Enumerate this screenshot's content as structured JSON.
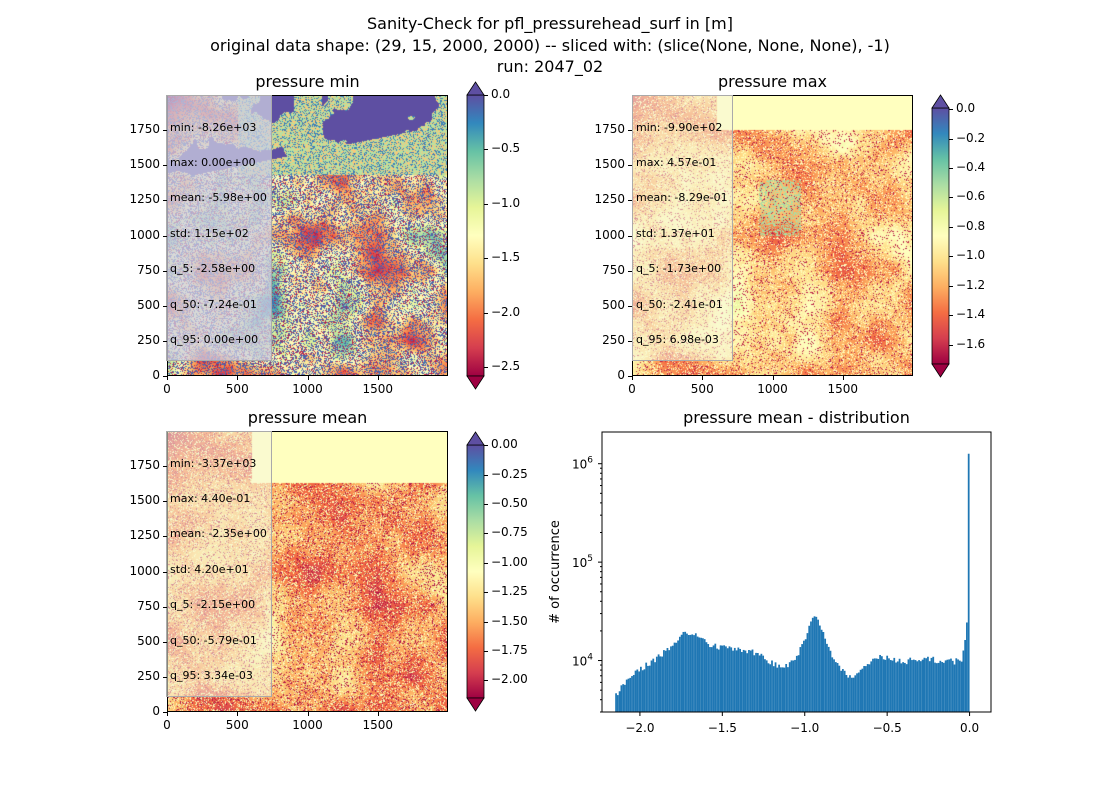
{
  "figure": {
    "title_line1": "Sanity-Check for pfl_pressurehead_surf in [m]",
    "title_line2": "original data shape: (29, 15, 2000, 2000) -- sliced with: (slice(None, None, None), -1)",
    "title_line3": "run: 2047_02"
  },
  "colormap": "Spectral",
  "panels": [
    {
      "title": "pressure min",
      "stats": [
        "min: -8.26e+03",
        "max: 0.00e+00",
        "mean: -5.98e+00",
        "std: 1.15e+02",
        "q_5: -2.58e+00",
        "q_50: -7.24e-01",
        "q_95: 0.00e+00"
      ],
      "colorbar": {
        "vmin": -2.58,
        "vmax": 0.0,
        "extend": "both",
        "ticks": [
          "0.0",
          "−0.5",
          "−1.0",
          "−1.5",
          "−2.0",
          "−2.5"
        ]
      },
      "xticks": [
        "0",
        "500",
        "1000",
        "1500"
      ],
      "yticks": [
        "0",
        "250",
        "500",
        "750",
        "1000",
        "1250",
        "1500",
        "1750"
      ]
    },
    {
      "title": "pressure max",
      "stats": [
        "min: -9.90e+02",
        "max: 4.57e-01",
        "mean: -8.29e-01",
        "std: 1.37e+01",
        "q_5: -1.73e+00",
        "q_50: -2.41e-01",
        "q_95: 6.98e-03"
      ],
      "colorbar": {
        "vmin": -1.73,
        "vmax": 0.007,
        "extend": "both",
        "ticks": [
          "0.0",
          "−0.2",
          "−0.4",
          "−0.6",
          "−0.8",
          "−1.0",
          "−1.2",
          "−1.4",
          "−1.6"
        ]
      },
      "xticks": [
        "0",
        "500",
        "1000",
        "1500"
      ],
      "yticks": [
        "0",
        "250",
        "500",
        "750",
        "1000",
        "1250",
        "1500",
        "1750"
      ]
    },
    {
      "title": "pressure mean",
      "stats": [
        "min: -3.37e+03",
        "max: 4.40e-01",
        "mean: -2.35e+00",
        "std: 4.20e+01",
        "q_5: -2.15e+00",
        "q_50: -5.79e-01",
        "q_95: 3.34e-03"
      ],
      "colorbar": {
        "vmin": -2.15,
        "vmax": 0.003,
        "extend": "both",
        "ticks": [
          "0.00",
          "−0.25",
          "−0.50",
          "−0.75",
          "−1.00",
          "−1.25",
          "−1.50",
          "−1.75",
          "−2.00"
        ]
      },
      "xticks": [
        "0",
        "500",
        "1000",
        "1500"
      ],
      "yticks": [
        "0",
        "250",
        "500",
        "750",
        "1000",
        "1250",
        "1500",
        "1750"
      ]
    }
  ],
  "histogram": {
    "title": "pressure mean - distribution",
    "ylabel": "# of occurrence",
    "xticks": [
      "−2.0",
      "−1.5",
      "−1.0",
      "−0.5",
      "0.0"
    ],
    "ytick_base": "10",
    "ytick_exps": [
      "4",
      "5",
      "6"
    ]
  },
  "chart_data": [
    {
      "type": "heatmap",
      "title": "pressure min",
      "x_range": [
        0,
        2000
      ],
      "y_range": [
        0,
        2000
      ],
      "value_range": [
        -2.58,
        0.0
      ],
      "colormap": "Spectral"
    },
    {
      "type": "heatmap",
      "title": "pressure max",
      "x_range": [
        0,
        2000
      ],
      "y_range": [
        0,
        2000
      ],
      "value_range": [
        -1.73,
        0.007
      ],
      "colormap": "Spectral"
    },
    {
      "type": "heatmap",
      "title": "pressure mean",
      "x_range": [
        0,
        2000
      ],
      "y_range": [
        0,
        2000
      ],
      "value_range": [
        -2.15,
        0.003
      ],
      "colormap": "Spectral"
    },
    {
      "type": "bar",
      "title": "pressure mean - distribution",
      "xlabel": "",
      "ylabel": "# of occurrence",
      "yscale": "log",
      "xlim": [
        -2.23,
        0.13
      ],
      "ylim": [
        3000,
        2100000
      ],
      "color": "#1f77b4",
      "x": [
        -2.15,
        -2.1,
        -2.05,
        -2.0,
        -1.95,
        -1.9,
        -1.85,
        -1.8,
        -1.75,
        -1.7,
        -1.65,
        -1.6,
        -1.55,
        -1.5,
        -1.45,
        -1.4,
        -1.35,
        -1.3,
        -1.25,
        -1.2,
        -1.15,
        -1.1,
        -1.05,
        -1.0,
        -0.95,
        -0.9,
        -0.85,
        -0.8,
        -0.75,
        -0.7,
        -0.65,
        -0.6,
        -0.55,
        -0.5,
        -0.45,
        -0.4,
        -0.35,
        -0.3,
        -0.25,
        -0.2,
        -0.15,
        -0.1,
        -0.05,
        -0.02,
        0.0
      ],
      "values": [
        4500,
        5800,
        7000,
        8200,
        9300,
        10500,
        12500,
        15000,
        18000,
        19500,
        17000,
        15000,
        14000,
        13500,
        13500,
        13000,
        12500,
        11800,
        10500,
        9500,
        8800,
        9000,
        11000,
        17000,
        29000,
        21000,
        12000,
        8500,
        7000,
        7200,
        8500,
        10000,
        10800,
        10600,
        10000,
        9500,
        10300,
        10400,
        10600,
        10000,
        10200,
        9700,
        10500,
        23000,
        1200000
      ]
    }
  ]
}
